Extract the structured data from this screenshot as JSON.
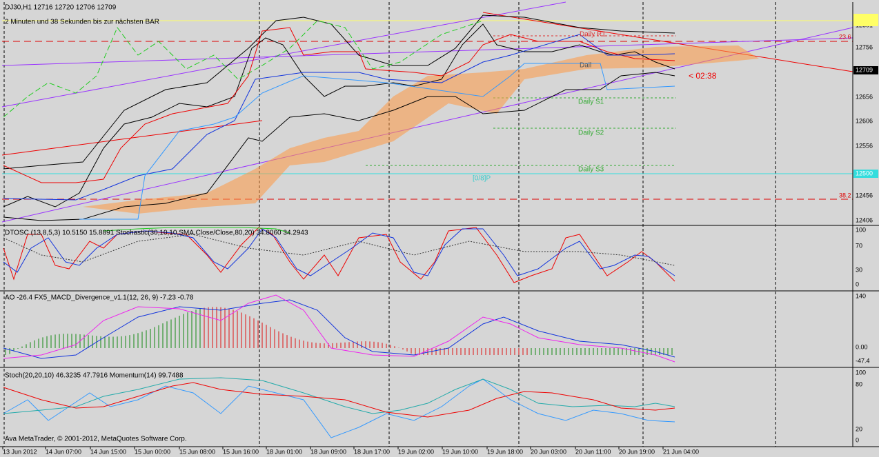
{
  "header": {
    "symbol_line": "DJ30,H1  12716 12720 12706 12709",
    "countdown": "2 Minuten und 38 Sekunden bis zur nächsten BAR"
  },
  "price_axis": {
    "labels": [
      "12801",
      "12756",
      "12656",
      "12606",
      "12556",
      "12456",
      "12406"
    ],
    "current": "12709",
    "pivot_level": "12500"
  },
  "levels": {
    "fib_23": "23.6",
    "fib_38": "38.2",
    "r1": "Daily R1",
    "s1": "Daily S1",
    "s2": "Daily S2",
    "s3": "Daily S3",
    "pivot": "Dail",
    "murrey": "[0/8]P",
    "timer": "< 02:38"
  },
  "panels": [
    {
      "title": "DTOSC (13,8,5,3) 10.5150 15.8891  Stochastic(30,10,10,SMA,Close/Close,80,20) 34.8060 34.2943",
      "axis": [
        "100",
        "70",
        "30",
        "0"
      ]
    },
    {
      "title": "AO -26.4  FX5_MACD_Divergence_v1.1(12, 26, 9) -7.23 -0.78",
      "axis": [
        "140",
        "0.00",
        "-47.4"
      ]
    },
    {
      "title": "Stoch(20,20,10) 46.3235 47.7916  Momentum(14) 99.7488",
      "axis": [
        "100",
        "80",
        "20",
        "0"
      ]
    }
  ],
  "footer": "Ava MetaTrader, © 2001-2012, MetaQuotes Software Corp.",
  "time_axis": [
    "13 Jun 2012",
    "14 Jun 07:00",
    "14 Jun 15:00",
    "15 Jun 00:00",
    "15 Jun 08:00",
    "15 Jun 16:00",
    "18 Jun 01:00",
    "18 Jun 09:00",
    "18 Jun 17:00",
    "19 Jun 02:00",
    "19 Jun 10:00",
    "19 Jun 18:00",
    "20 Jun 03:00",
    "20 Jun 11:00",
    "20 Jun 19:00",
    "21 Jun 04:00"
  ]
}
